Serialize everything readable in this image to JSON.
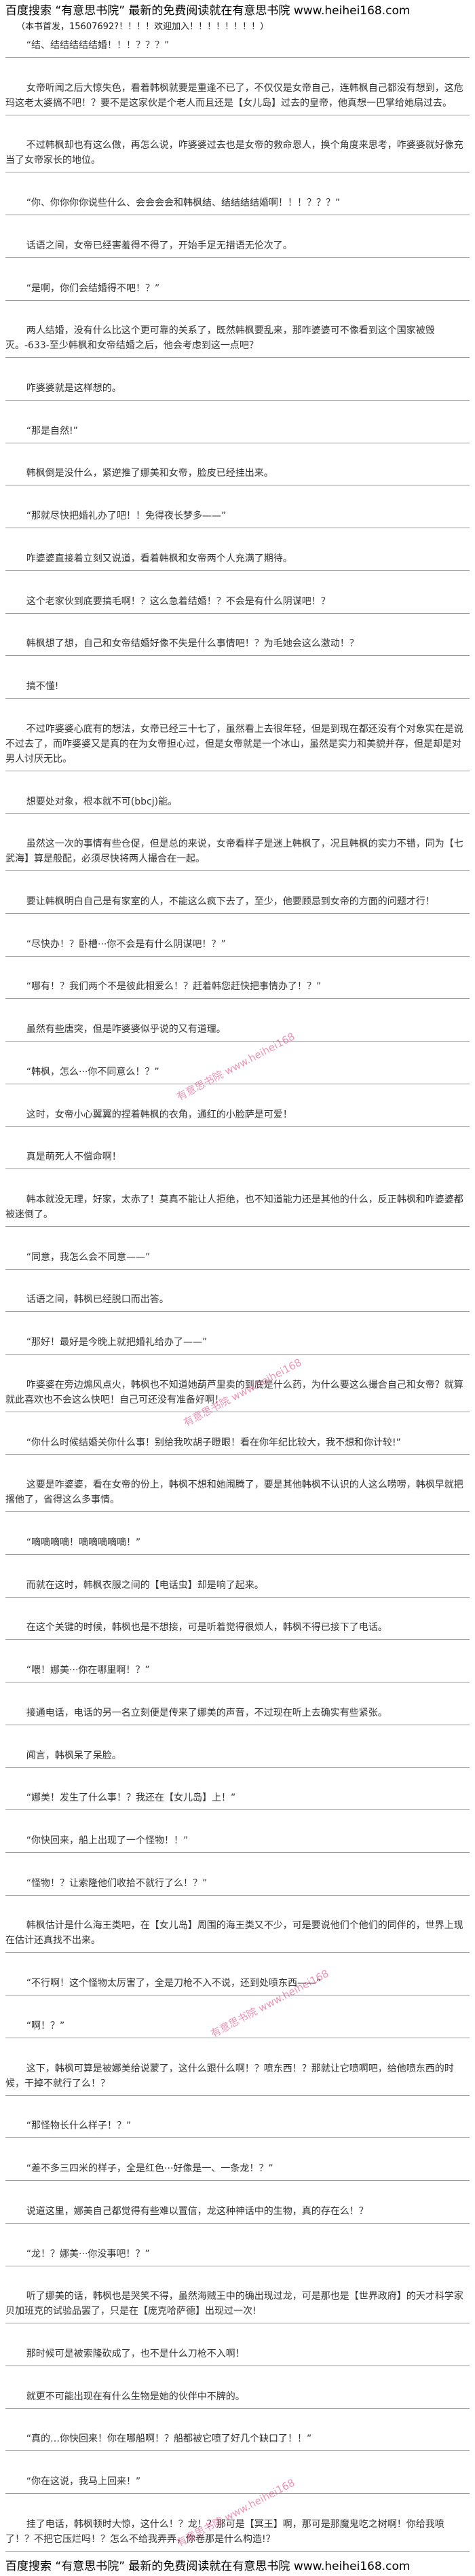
{
  "header": {
    "line1": "百度搜索 “有意思书院” 最新的免费阅读就在有意思书院 www.heihei168.com",
    "line2": "（本书首发，15607692?！！！！欢迎加入！！！！！！！！）"
  },
  "paragraphs": [
    "“结、结结结结结婚！！！？？？”",
    "女帝听闻之后大惊失色，看着韩枫就要是重逢不已了，不仅仅是女帝自己，连韩枫自己都没有想到，这危玛这老太婆搞不吧！？要不是这家伙是个老人而且还是【女儿岛】过去的皇帝，他真想一巴掌给她扇过去。",
    "不过韩枫却也有这么做，再怎么说，咋婆婆过去也是女帝的救命恩人，换个角度来思考，咋婆婆就好像充当了女帝家长的地位。",
    "“你、你你你你说些什么、会会会会和韩枫结、结结结结婚啊！！！？？？”",
    "话语之间，女帝已经害羞得不得了，开始手足无措语无伦次了。",
    "“是啊，你们会结婚得不吧！？”",
    "两人结婚，没有什么比这个更可靠的关系了，既然韩枫要乱来，那咋婆婆可不像看到这个国家被毁灭。-633-至少韩枫和女帝结婚之后，他会考虑到这一点吧？",
    "咋婆婆就是这样想的。",
    "“那是自然!”",
    "韩枫倒是没什么，紧逆推了娜美和女帝，脸皮已经挂出来。",
    "“那就尽快把婚礼办了吧！！免得夜长梦多——”",
    "咋婆婆直接着立刻又说道，看着韩枫和女帝两个人充满了期待。",
    "这个老家伙到底要搞毛啊！？这么急着结婚！？不会是有什么阴谋吧！？",
    "韩枫想了想，自己和女帝结婚好像不失是什么事情吧！？为毛她会这么激动！？",
    "搞不懂!",
    "不过咋婆婆心底有的想法，女帝已经三十七了，虽然看上去很年轻，但是到现在都还没有个对象实在是说不过去了，而咋婆婆又是真的在为女帝担心过，但是女帝就是一个冰山，虽然是实力和美貌并存，但是却是对男人讨厌无比。",
    "想要处对象，根本就不可(bbcj)能。",
    "虽然这一次的事情有些仓促，但是总的来说，女帝看样子是迷上韩枫了，况且韩枫的实力不错，同为【七武海】算是般配，必须尽快将两人撮合在一起。",
    "要让韩枫明白自己是有家室的人，不能这么疯下去了，至少，他要顾忌到女帝的方面的问题才行！",
    "“尽快办！？卧槽···你不会是有什么阴谋吧！？”",
    "“哪有！？我们两个不是彼此相爱么！？赶着韩您赶快把事情办了！？”",
    "虽然有些唐突，但是咋婆婆似乎说的又有道理。",
    "“韩枫，怎么···你不同意么！？”",
    "这时，女帝小心翼翼的捏着韩枫的衣角，通红的小脸萨是可爱！",
    "真是萌死人不偿命啊！",
    "韩本就没无理，好家，太赤了！莫真不能让人拒绝，也不知道能力还是其他的什么，反正韩枫和咋婆婆都被迷倒了。",
    "“同意，我怎么会不同意——”",
    "话语之间，韩枫已经脱口而出答。",
    "“那好！最好是今晚上就把婚礼给办了——”",
    "咋婆婆在旁边煽风点火，韩枫也不知道她葫芦里卖的到底是什么药，为什么要这么撮合自己和女帝？就算就此喜欢也不会这么快吧！自己可还没有准备好啊！",
    "“你什么时候结婚关你什么事！别给我吹胡子瞪眼！看在你年纪比较大，我不想和你计较!”",
    "这要是咋婆婆，看在女帝的份上，韩枫不想和她闹腾了，要是其他韩枫不认识的人这么唠唠，韩枫早就把撂他了，省得这么多事情。",
    "“嘀嘀嘀嘀！嘀嘀嘀嘀嘀！”",
    "而就在这时，韩枫衣服之间的【电话虫】却是响了起来。",
    "在这个关键的时候，韩枫也是不想接，可是听着觉得很烦人，韩枫不得已接下了电话。",
    "“喂！娜美···你在哪里啊！？”",
    "接通电话，电话的另一名立刻便是传来了娜美的声音，不过现在听上去确实有些紧张。",
    "闻言，韩枫呆了呆脸。",
    "“娜美！发生了什么事！？我还在【女儿岛】上！”",
    "“你快回来，船上出现了一个怪物！！”",
    "“怪物！？让索隆他们收拾不就行了么！？”",
    "韩枫估计是什么海王类吧，在【女儿岛】周围的海王类又不少，可是要说他们个他们的同伴的，世界上现在估计还真找不出来。",
    "“不行啊！这个怪物太厉害了，全是刀枪不入不说，还到处喷东西——”",
    "“啊！？”",
    "这下，韩枫可算是被娜美给说蒙了，这什么跟什么啊！？喷东西！？那就让它喷啊吧，给他喷东西的时候，干掉不就行了么！？",
    "“那怪物长什么样子！？”",
    "“差不多三四米的样子，全是红色···好像是一、一条龙！？”",
    "说道这里，娜美自己都觉得有些难以置信，龙这种神话中的生物，真的存在么！？",
    "“龙！？娜美···你没事吧！？”",
    "听了娜美的话，韩枫也是哭笑不得，虽然海贼王中的确出现过龙，可是那也是【世界政府】的天才科学家贝加班克的试验品罢了，只是在【庞克哈萨德】出现过一次!",
    "那时候可是被索隆砍成了，也不是什么刀枪不入啊！",
    "就更不可能出现在有什么生物是她的伙伴中不牌的。",
    "“真的…你快回来！你在哪船啊！？船都被它喷了好几个缺口了！！”",
    "“你在这说，我马上回来！”",
    "挂了电话，韩枫顿时大惊，这什么！？龙！？那可是【冥王】啊，那可是那魔鬼吃之树啊！你给我喷了！？不把它压烂吗！？怎么不给我弄弄，你卷那是什么构造!？"
  ],
  "watermarks": [
    "有意思书院 www.heihei168",
    "有意思书院 www.heihei168",
    "有意思书院 www.heihei168",
    "有意思书院 www.heihei168"
  ],
  "footer": "百度搜索 “有意思书院” 最新的免费阅读就在有意思书院 www.heihei168.com"
}
